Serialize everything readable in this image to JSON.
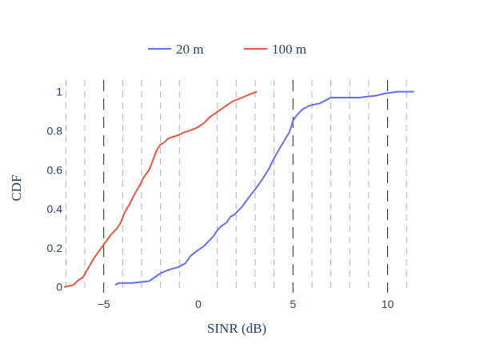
{
  "chart_data": {
    "type": "line",
    "xlabel": "SINR (dB)",
    "ylabel": "CDF",
    "xlim": [
      -7.1,
      11.5
    ],
    "ylim": [
      -0.03,
      1.06
    ],
    "x_ticks": [
      -5,
      0,
      5,
      10
    ],
    "x_tick_labels": [
      "−5",
      "0",
      "5",
      "10"
    ],
    "y_ticks": [
      0,
      0.2,
      0.4,
      0.6,
      0.8,
      1
    ],
    "y_tick_labels": [
      "0",
      "0.2",
      "0.4",
      "0.6",
      "0.8",
      "1"
    ],
    "legend_position": "top-center",
    "grid": "vertical dashed",
    "major_grid_x": [
      -5,
      5,
      10
    ],
    "minor_grid_x": [
      -7,
      -6,
      -4,
      -3,
      -2,
      -1,
      1,
      2,
      3,
      4,
      6,
      7,
      8,
      9,
      11
    ],
    "series": [
      {
        "name": "20 m",
        "color": "#636efa",
        "x": [
          -4.4,
          -4.2,
          -3.5,
          -2.6,
          -2.3,
          -2.0,
          -1.5,
          -1.1,
          -0.7,
          -0.4,
          0.0,
          0.3,
          0.6,
          0.8,
          1.0,
          1.2,
          1.5,
          1.7,
          1.9,
          2.3,
          2.6,
          3.0,
          3.3,
          3.7,
          4.0,
          4.3,
          4.6,
          4.8,
          5.0,
          5.2,
          5.5,
          5.9,
          6.4,
          7.0,
          8.5,
          9.4,
          9.8,
          10.5,
          11.4
        ],
        "y": [
          0.01,
          0.02,
          0.02,
          0.03,
          0.05,
          0.07,
          0.09,
          0.1,
          0.12,
          0.16,
          0.19,
          0.21,
          0.24,
          0.26,
          0.29,
          0.31,
          0.33,
          0.36,
          0.37,
          0.41,
          0.45,
          0.5,
          0.54,
          0.6,
          0.66,
          0.71,
          0.76,
          0.79,
          0.85,
          0.88,
          0.91,
          0.93,
          0.94,
          0.97,
          0.97,
          0.98,
          0.99,
          1.0,
          1.0
        ]
      },
      {
        "name": "100 m",
        "color": "#ef553b",
        "x": [
          -7.1,
          -6.6,
          -6.4,
          -6.1,
          -5.8,
          -5.5,
          -5.2,
          -4.9,
          -4.6,
          -4.3,
          -4.1,
          -3.9,
          -3.6,
          -3.4,
          -3.1,
          -2.9,
          -2.6,
          -2.4,
          -2.2,
          -2.0,
          -1.8,
          -1.6,
          -1.3,
          -1.0,
          -0.8,
          -0.5,
          -0.2,
          0.0,
          0.3,
          0.6,
          0.9,
          1.2,
          1.5,
          1.8,
          2.3,
          2.8,
          3.1
        ],
        "y": [
          0.0,
          0.01,
          0.03,
          0.05,
          0.1,
          0.15,
          0.19,
          0.23,
          0.27,
          0.3,
          0.33,
          0.38,
          0.43,
          0.47,
          0.52,
          0.56,
          0.6,
          0.65,
          0.7,
          0.73,
          0.74,
          0.76,
          0.77,
          0.78,
          0.79,
          0.8,
          0.81,
          0.82,
          0.84,
          0.87,
          0.89,
          0.91,
          0.93,
          0.95,
          0.97,
          0.99,
          1.0
        ]
      }
    ]
  }
}
